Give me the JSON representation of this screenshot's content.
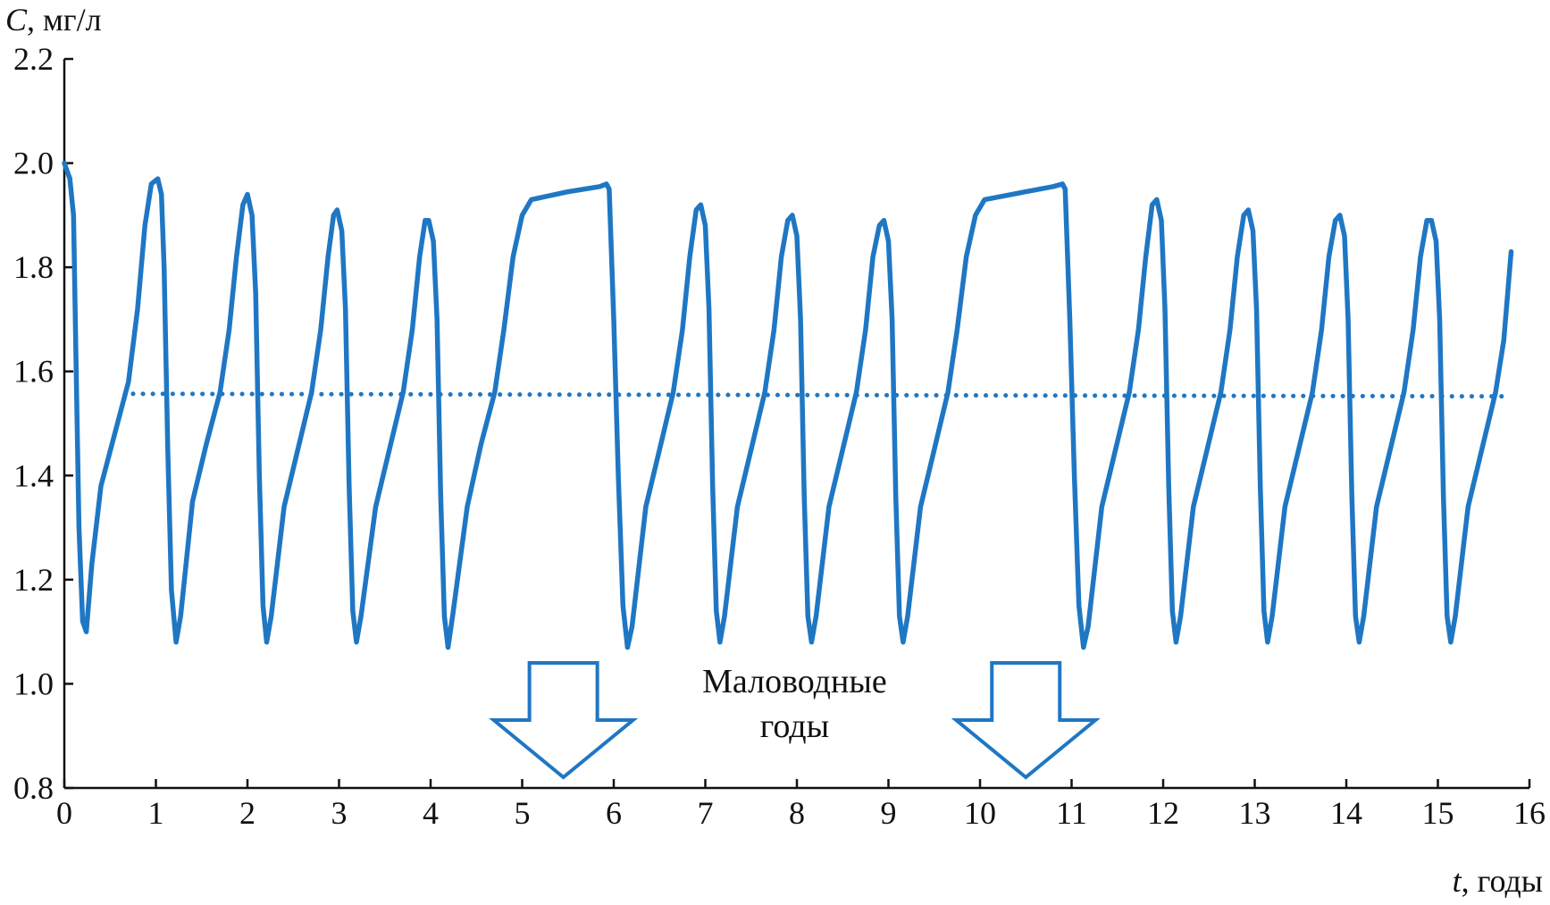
{
  "chart_data": {
    "type": "line",
    "title": "",
    "ylabel_var": "C",
    "ylabel_unit": ", мг/л",
    "xlabel_var": "t",
    "xlabel_unit": ", годы",
    "xlim": [
      0,
      16
    ],
    "ylim": [
      0.8,
      2.2
    ],
    "x_ticks": [
      "0",
      "1",
      "2",
      "3",
      "4",
      "5",
      "6",
      "7",
      "8",
      "9",
      "10",
      "11",
      "12",
      "13",
      "14",
      "15",
      "16"
    ],
    "y_ticks": [
      "0.8",
      "1.0",
      "1.2",
      "1.4",
      "1.6",
      "1.8",
      "2.0",
      "2.2"
    ],
    "grid": false,
    "series": [
      {
        "style": "solid",
        "color": "#1F77C4",
        "points": [
          [
            0.0,
            2.0
          ],
          [
            0.06,
            1.97
          ],
          [
            0.1,
            1.9
          ],
          [
            0.13,
            1.6
          ],
          [
            0.16,
            1.3
          ],
          [
            0.2,
            1.12
          ],
          [
            0.24,
            1.1
          ],
          [
            0.3,
            1.23
          ],
          [
            0.4,
            1.38
          ],
          [
            0.55,
            1.48
          ],
          [
            0.7,
            1.58
          ],
          [
            0.8,
            1.72
          ],
          [
            0.88,
            1.88
          ],
          [
            0.95,
            1.96
          ],
          [
            1.02,
            1.97
          ],
          [
            1.06,
            1.94
          ],
          [
            1.09,
            1.8
          ],
          [
            1.13,
            1.45
          ],
          [
            1.17,
            1.18
          ],
          [
            1.22,
            1.08
          ],
          [
            1.27,
            1.13
          ],
          [
            1.4,
            1.35
          ],
          [
            1.55,
            1.46
          ],
          [
            1.7,
            1.56
          ],
          [
            1.8,
            1.68
          ],
          [
            1.88,
            1.82
          ],
          [
            1.95,
            1.92
          ],
          [
            2.0,
            1.94
          ],
          [
            2.05,
            1.9
          ],
          [
            2.09,
            1.75
          ],
          [
            2.13,
            1.4
          ],
          [
            2.17,
            1.15
          ],
          [
            2.21,
            1.08
          ],
          [
            2.26,
            1.13
          ],
          [
            2.4,
            1.34
          ],
          [
            2.55,
            1.45
          ],
          [
            2.7,
            1.56
          ],
          [
            2.8,
            1.68
          ],
          [
            2.88,
            1.82
          ],
          [
            2.94,
            1.9
          ],
          [
            2.98,
            1.91
          ],
          [
            3.03,
            1.87
          ],
          [
            3.07,
            1.72
          ],
          [
            3.11,
            1.38
          ],
          [
            3.15,
            1.14
          ],
          [
            3.19,
            1.08
          ],
          [
            3.24,
            1.13
          ],
          [
            3.4,
            1.34
          ],
          [
            3.55,
            1.45
          ],
          [
            3.7,
            1.56
          ],
          [
            3.8,
            1.68
          ],
          [
            3.88,
            1.82
          ],
          [
            3.94,
            1.89
          ],
          [
            3.98,
            1.89
          ],
          [
            4.03,
            1.85
          ],
          [
            4.07,
            1.7
          ],
          [
            4.11,
            1.36
          ],
          [
            4.15,
            1.13
          ],
          [
            4.19,
            1.07
          ],
          [
            4.24,
            1.13
          ],
          [
            4.4,
            1.34
          ],
          [
            4.55,
            1.46
          ],
          [
            4.7,
            1.56
          ],
          [
            4.8,
            1.68
          ],
          [
            4.9,
            1.82
          ],
          [
            5.0,
            1.9
          ],
          [
            5.1,
            1.93
          ],
          [
            5.5,
            1.945
          ],
          [
            5.85,
            1.955
          ],
          [
            5.92,
            1.96
          ],
          [
            5.95,
            1.95
          ],
          [
            6.0,
            1.7
          ],
          [
            6.05,
            1.4
          ],
          [
            6.1,
            1.15
          ],
          [
            6.15,
            1.07
          ],
          [
            6.2,
            1.11
          ],
          [
            6.35,
            1.34
          ],
          [
            6.5,
            1.45
          ],
          [
            6.65,
            1.56
          ],
          [
            6.75,
            1.68
          ],
          [
            6.83,
            1.82
          ],
          [
            6.9,
            1.91
          ],
          [
            6.95,
            1.92
          ],
          [
            7.0,
            1.88
          ],
          [
            7.04,
            1.72
          ],
          [
            7.08,
            1.38
          ],
          [
            7.12,
            1.14
          ],
          [
            7.16,
            1.08
          ],
          [
            7.21,
            1.13
          ],
          [
            7.35,
            1.34
          ],
          [
            7.5,
            1.45
          ],
          [
            7.65,
            1.56
          ],
          [
            7.75,
            1.68
          ],
          [
            7.83,
            1.82
          ],
          [
            7.9,
            1.89
          ],
          [
            7.95,
            1.9
          ],
          [
            8.0,
            1.86
          ],
          [
            8.04,
            1.7
          ],
          [
            8.08,
            1.36
          ],
          [
            8.12,
            1.13
          ],
          [
            8.16,
            1.08
          ],
          [
            8.21,
            1.13
          ],
          [
            8.35,
            1.34
          ],
          [
            8.5,
            1.45
          ],
          [
            8.65,
            1.56
          ],
          [
            8.75,
            1.68
          ],
          [
            8.83,
            1.82
          ],
          [
            8.9,
            1.88
          ],
          [
            8.95,
            1.89
          ],
          [
            9.0,
            1.85
          ],
          [
            9.04,
            1.7
          ],
          [
            9.08,
            1.36
          ],
          [
            9.12,
            1.13
          ],
          [
            9.16,
            1.08
          ],
          [
            9.21,
            1.13
          ],
          [
            9.35,
            1.34
          ],
          [
            9.5,
            1.45
          ],
          [
            9.65,
            1.56
          ],
          [
            9.75,
            1.68
          ],
          [
            9.85,
            1.82
          ],
          [
            9.95,
            1.9
          ],
          [
            10.05,
            1.93
          ],
          [
            10.5,
            1.945
          ],
          [
            10.8,
            1.955
          ],
          [
            10.9,
            1.96
          ],
          [
            10.93,
            1.95
          ],
          [
            10.98,
            1.7
          ],
          [
            11.03,
            1.4
          ],
          [
            11.08,
            1.15
          ],
          [
            11.13,
            1.07
          ],
          [
            11.18,
            1.11
          ],
          [
            11.33,
            1.34
          ],
          [
            11.48,
            1.45
          ],
          [
            11.63,
            1.56
          ],
          [
            11.73,
            1.68
          ],
          [
            11.81,
            1.82
          ],
          [
            11.88,
            1.92
          ],
          [
            11.93,
            1.93
          ],
          [
            11.98,
            1.89
          ],
          [
            12.02,
            1.72
          ],
          [
            12.06,
            1.38
          ],
          [
            12.1,
            1.14
          ],
          [
            12.14,
            1.08
          ],
          [
            12.19,
            1.13
          ],
          [
            12.33,
            1.34
          ],
          [
            12.48,
            1.45
          ],
          [
            12.63,
            1.56
          ],
          [
            12.73,
            1.68
          ],
          [
            12.81,
            1.82
          ],
          [
            12.88,
            1.9
          ],
          [
            12.93,
            1.91
          ],
          [
            12.98,
            1.87
          ],
          [
            13.02,
            1.72
          ],
          [
            13.06,
            1.38
          ],
          [
            13.1,
            1.14
          ],
          [
            13.14,
            1.08
          ],
          [
            13.19,
            1.13
          ],
          [
            13.33,
            1.34
          ],
          [
            13.48,
            1.45
          ],
          [
            13.63,
            1.56
          ],
          [
            13.73,
            1.68
          ],
          [
            13.81,
            1.82
          ],
          [
            13.88,
            1.89
          ],
          [
            13.93,
            1.9
          ],
          [
            13.98,
            1.86
          ],
          [
            14.02,
            1.7
          ],
          [
            14.06,
            1.36
          ],
          [
            14.1,
            1.13
          ],
          [
            14.14,
            1.08
          ],
          [
            14.19,
            1.13
          ],
          [
            14.33,
            1.34
          ],
          [
            14.48,
            1.45
          ],
          [
            14.63,
            1.56
          ],
          [
            14.73,
            1.68
          ],
          [
            14.81,
            1.82
          ],
          [
            14.88,
            1.89
          ],
          [
            14.93,
            1.89
          ],
          [
            14.98,
            1.85
          ],
          [
            15.02,
            1.7
          ],
          [
            15.06,
            1.36
          ],
          [
            15.1,
            1.13
          ],
          [
            15.14,
            1.08
          ],
          [
            15.19,
            1.13
          ],
          [
            15.33,
            1.34
          ],
          [
            15.48,
            1.45
          ],
          [
            15.63,
            1.56
          ],
          [
            15.72,
            1.66
          ],
          [
            15.8,
            1.83
          ]
        ]
      },
      {
        "style": "dotted",
        "color": "#1F77C4",
        "points": [
          [
            0.75,
            1.557
          ],
          [
            15.8,
            1.552
          ]
        ]
      }
    ],
    "annotation": {
      "lines": [
        "Маловодные",
        "годы"
      ],
      "arrows_x": [
        5.45,
        10.5
      ]
    }
  }
}
